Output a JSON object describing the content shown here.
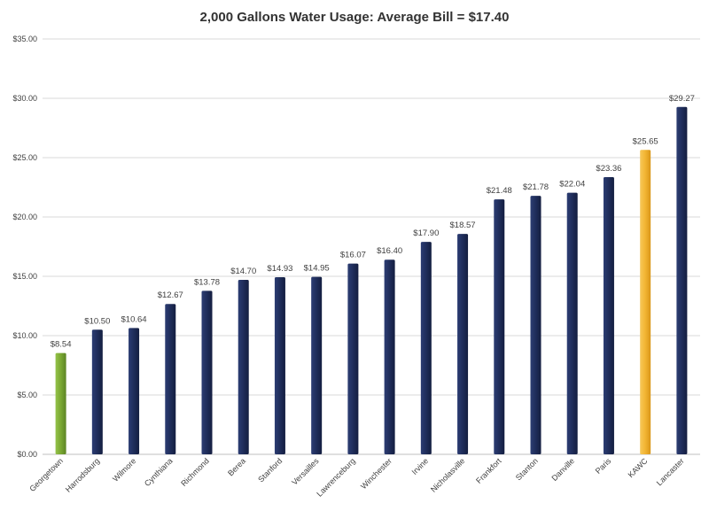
{
  "chart_data": {
    "type": "bar",
    "title": "2,000 Gallons Water Usage:  Average Bill = $17.40",
    "xlabel": "",
    "ylabel": "",
    "ylim": [
      0,
      35
    ],
    "yticks": [
      0,
      5,
      10,
      15,
      20,
      25,
      30,
      35
    ],
    "ytick_labels": [
      "$0.00",
      "$5.00",
      "$10.00",
      "$15.00",
      "$20.00",
      "$25.00",
      "$30.00",
      "$35.00"
    ],
    "grid": true,
    "legend": "none",
    "categories": [
      "Georgetown",
      "Harrodsburg",
      "Wilmore",
      "Cynthiana",
      "Richmond",
      "Berea",
      "Stanford",
      "Versailles",
      "Lawrenceburg",
      "Winchester",
      "Irvine",
      "Nicholasville",
      "Frankfort",
      "Stanton",
      "Danville",
      "Paris",
      "KAWC",
      "Lancaster"
    ],
    "values": [
      8.54,
      10.5,
      10.64,
      12.67,
      13.78,
      14.7,
      14.93,
      14.95,
      16.07,
      16.4,
      17.9,
      18.57,
      21.48,
      21.78,
      22.04,
      23.36,
      25.65,
      29.27
    ],
    "data_labels": [
      "$8.54",
      "$10.50",
      "$10.64",
      "$12.67",
      "$13.78",
      "$14.70",
      "$14.93",
      "$14.95",
      "$16.07",
      "$16.40",
      "$17.90",
      "$18.57",
      "$21.48",
      "$21.78",
      "$22.04",
      "$23.36",
      "$25.65",
      "$29.27"
    ],
    "colors": {
      "default": "#1f2d5a",
      "Georgetown": "#7aa832",
      "KAWC": "#f2b431"
    }
  }
}
